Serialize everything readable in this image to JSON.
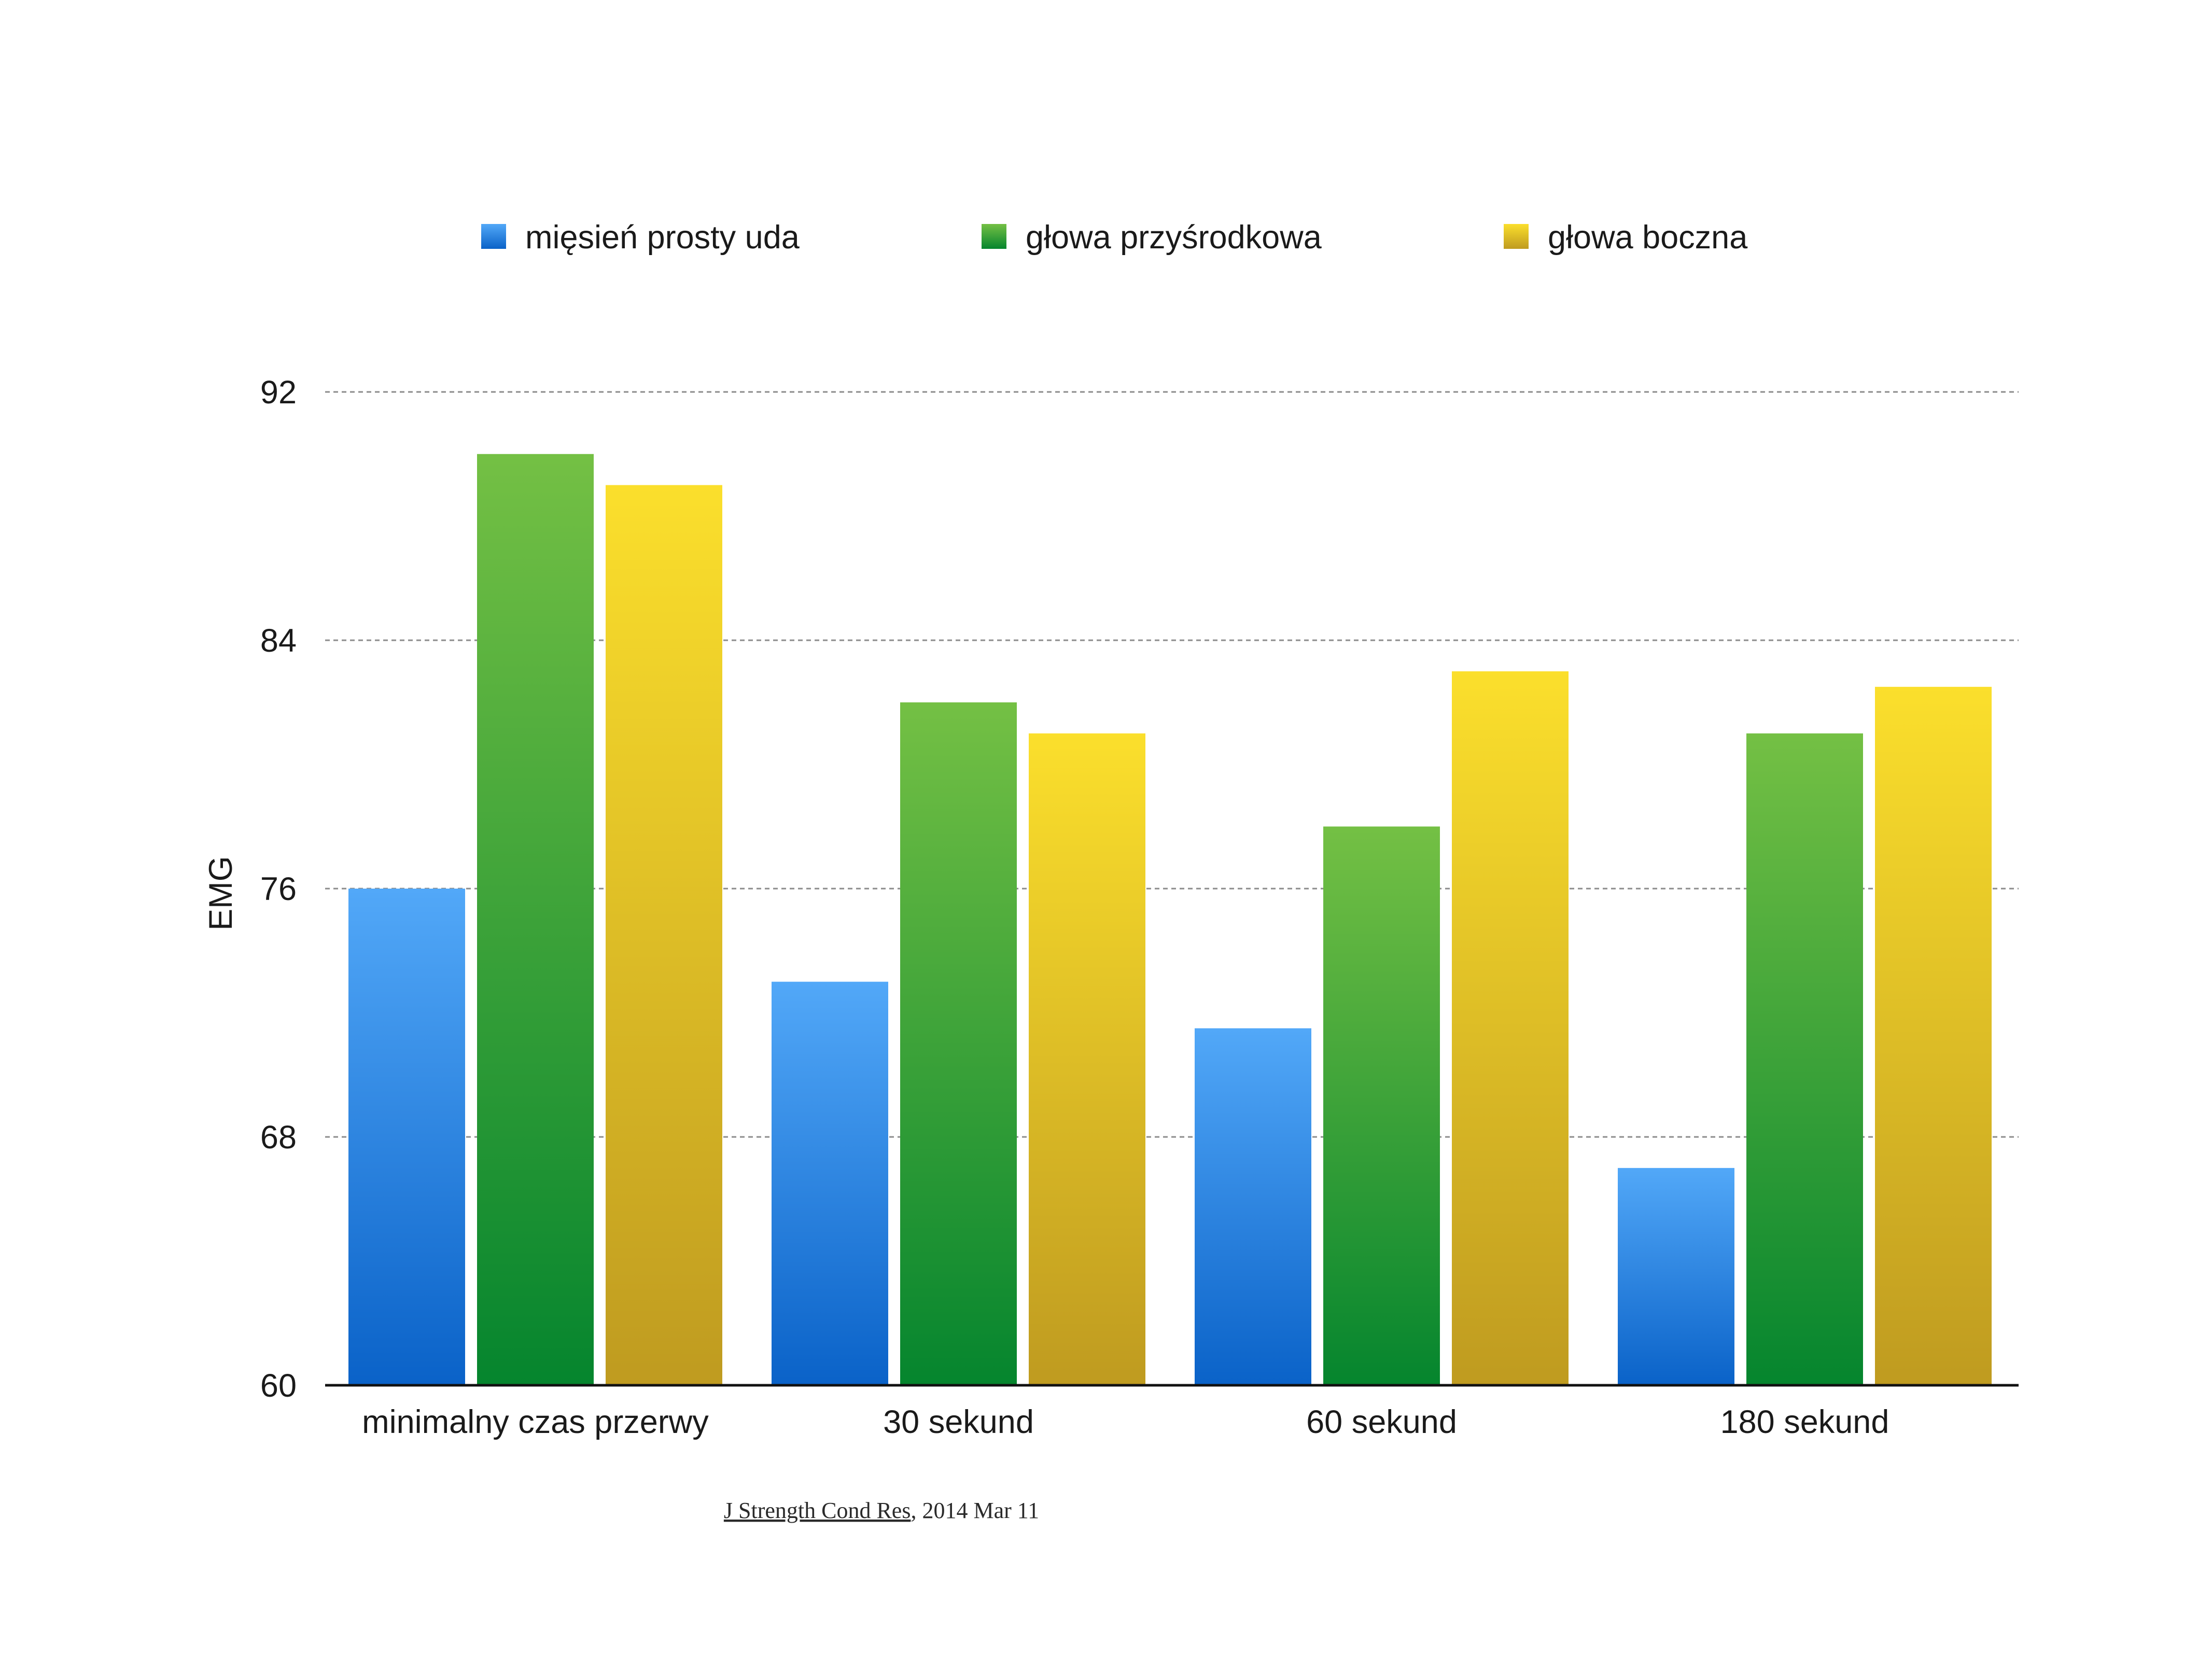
{
  "chart_data": {
    "type": "bar",
    "title": "",
    "xlabel": "",
    "ylabel": "EMG",
    "ylim": [
      60,
      92
    ],
    "yticks": [
      "60",
      "68",
      "76",
      "84",
      "92"
    ],
    "grid": true,
    "legend_position": "top",
    "categories": [
      "minimalny czas przerwy",
      "30 sekund",
      "60 sekund",
      "180 sekund"
    ],
    "series": [
      {
        "name": "mięsień prosty uda",
        "values": [
          76.0,
          73.0,
          71.5,
          67.0
        ],
        "color": "#2f7fe0"
      },
      {
        "name": "głowa przyśrodkowa",
        "values": [
          90.0,
          82.0,
          78.0,
          81.0
        ],
        "color": "#2ea43a"
      },
      {
        "name": "głowa boczna",
        "values": [
          89.0,
          81.0,
          83.0,
          82.5
        ],
        "color": "#e8c42a"
      }
    ]
  },
  "source": {
    "journal": "J Strength Cond Res",
    "date": ", 2014 Mar 11"
  }
}
